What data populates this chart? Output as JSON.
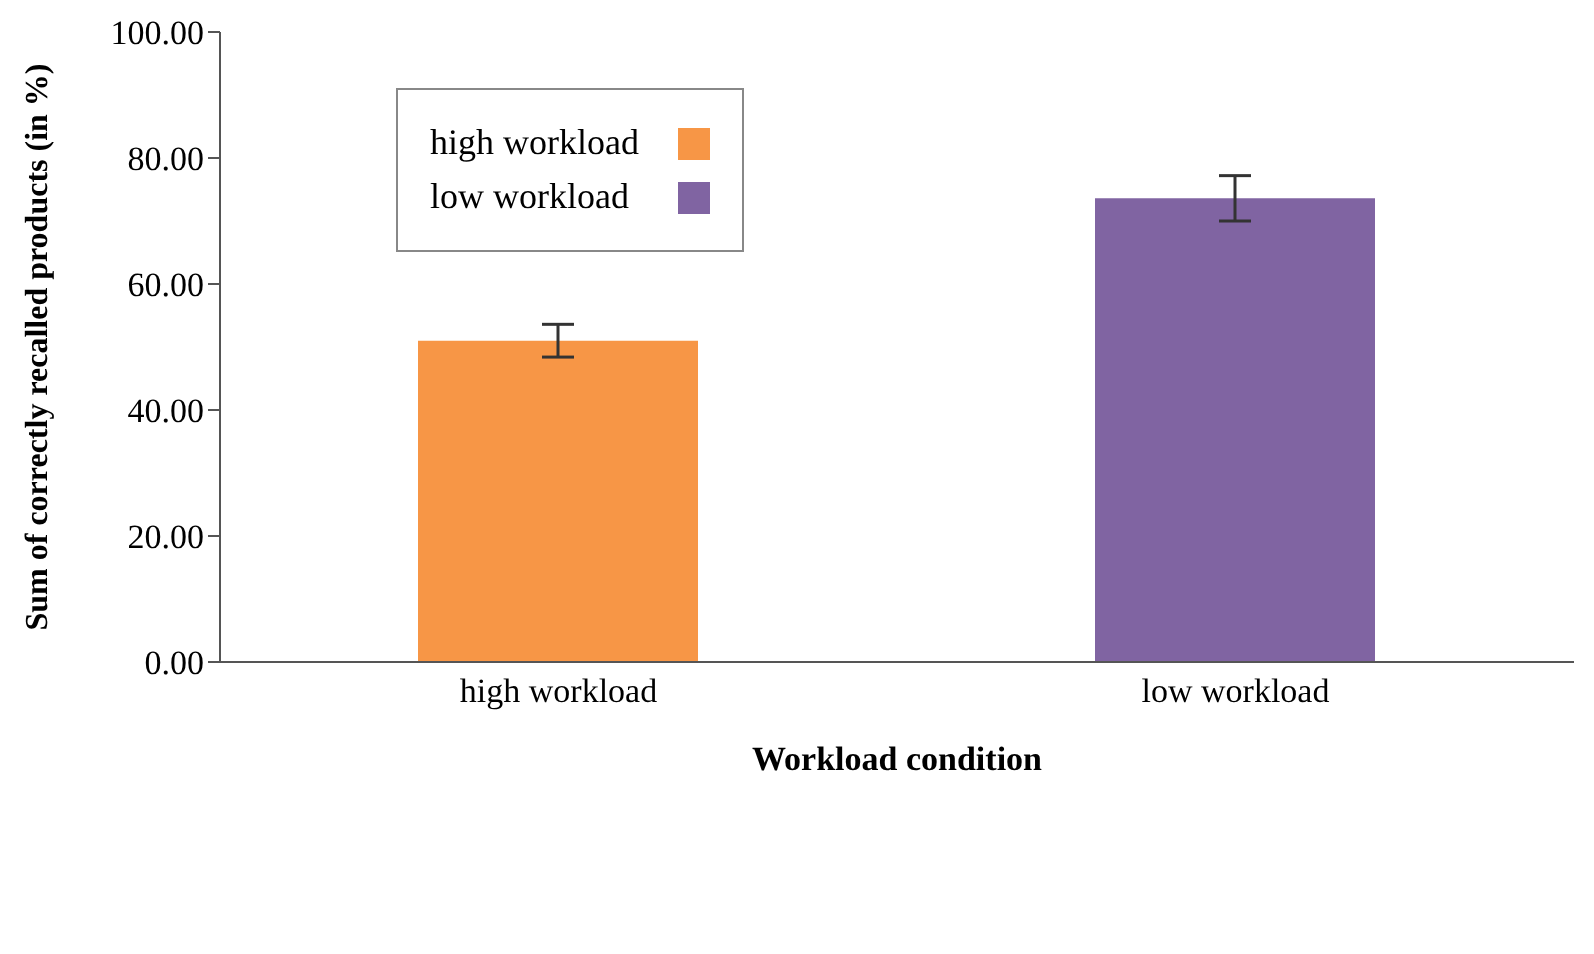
{
  "chart_data": {
    "type": "bar",
    "xlabel": "Workload  condition",
    "ylabel": "Sum of correctly recalled products (in %)",
    "categories": [
      "high workload",
      "low workload"
    ],
    "series": [
      {
        "name": "high workload",
        "color": "#f79646",
        "values": [
          51,
          null
        ],
        "errors": [
          2.6,
          null
        ]
      },
      {
        "name": "low workload",
        "color": "#8064a2",
        "values": [
          null,
          73.6
        ],
        "errors": [
          null,
          3.6
        ]
      }
    ],
    "ylim": [
      0,
      100
    ],
    "yticks": [
      {
        "value": 0,
        "label": "0.00"
      },
      {
        "value": 20,
        "label": "20.00"
      },
      {
        "value": 40,
        "label": "40.00"
      },
      {
        "value": 60,
        "label": "60.00"
      },
      {
        "value": 80,
        "label": "80.00"
      },
      {
        "value": 100,
        "label": "100.00"
      }
    ],
    "legend": "top left"
  }
}
